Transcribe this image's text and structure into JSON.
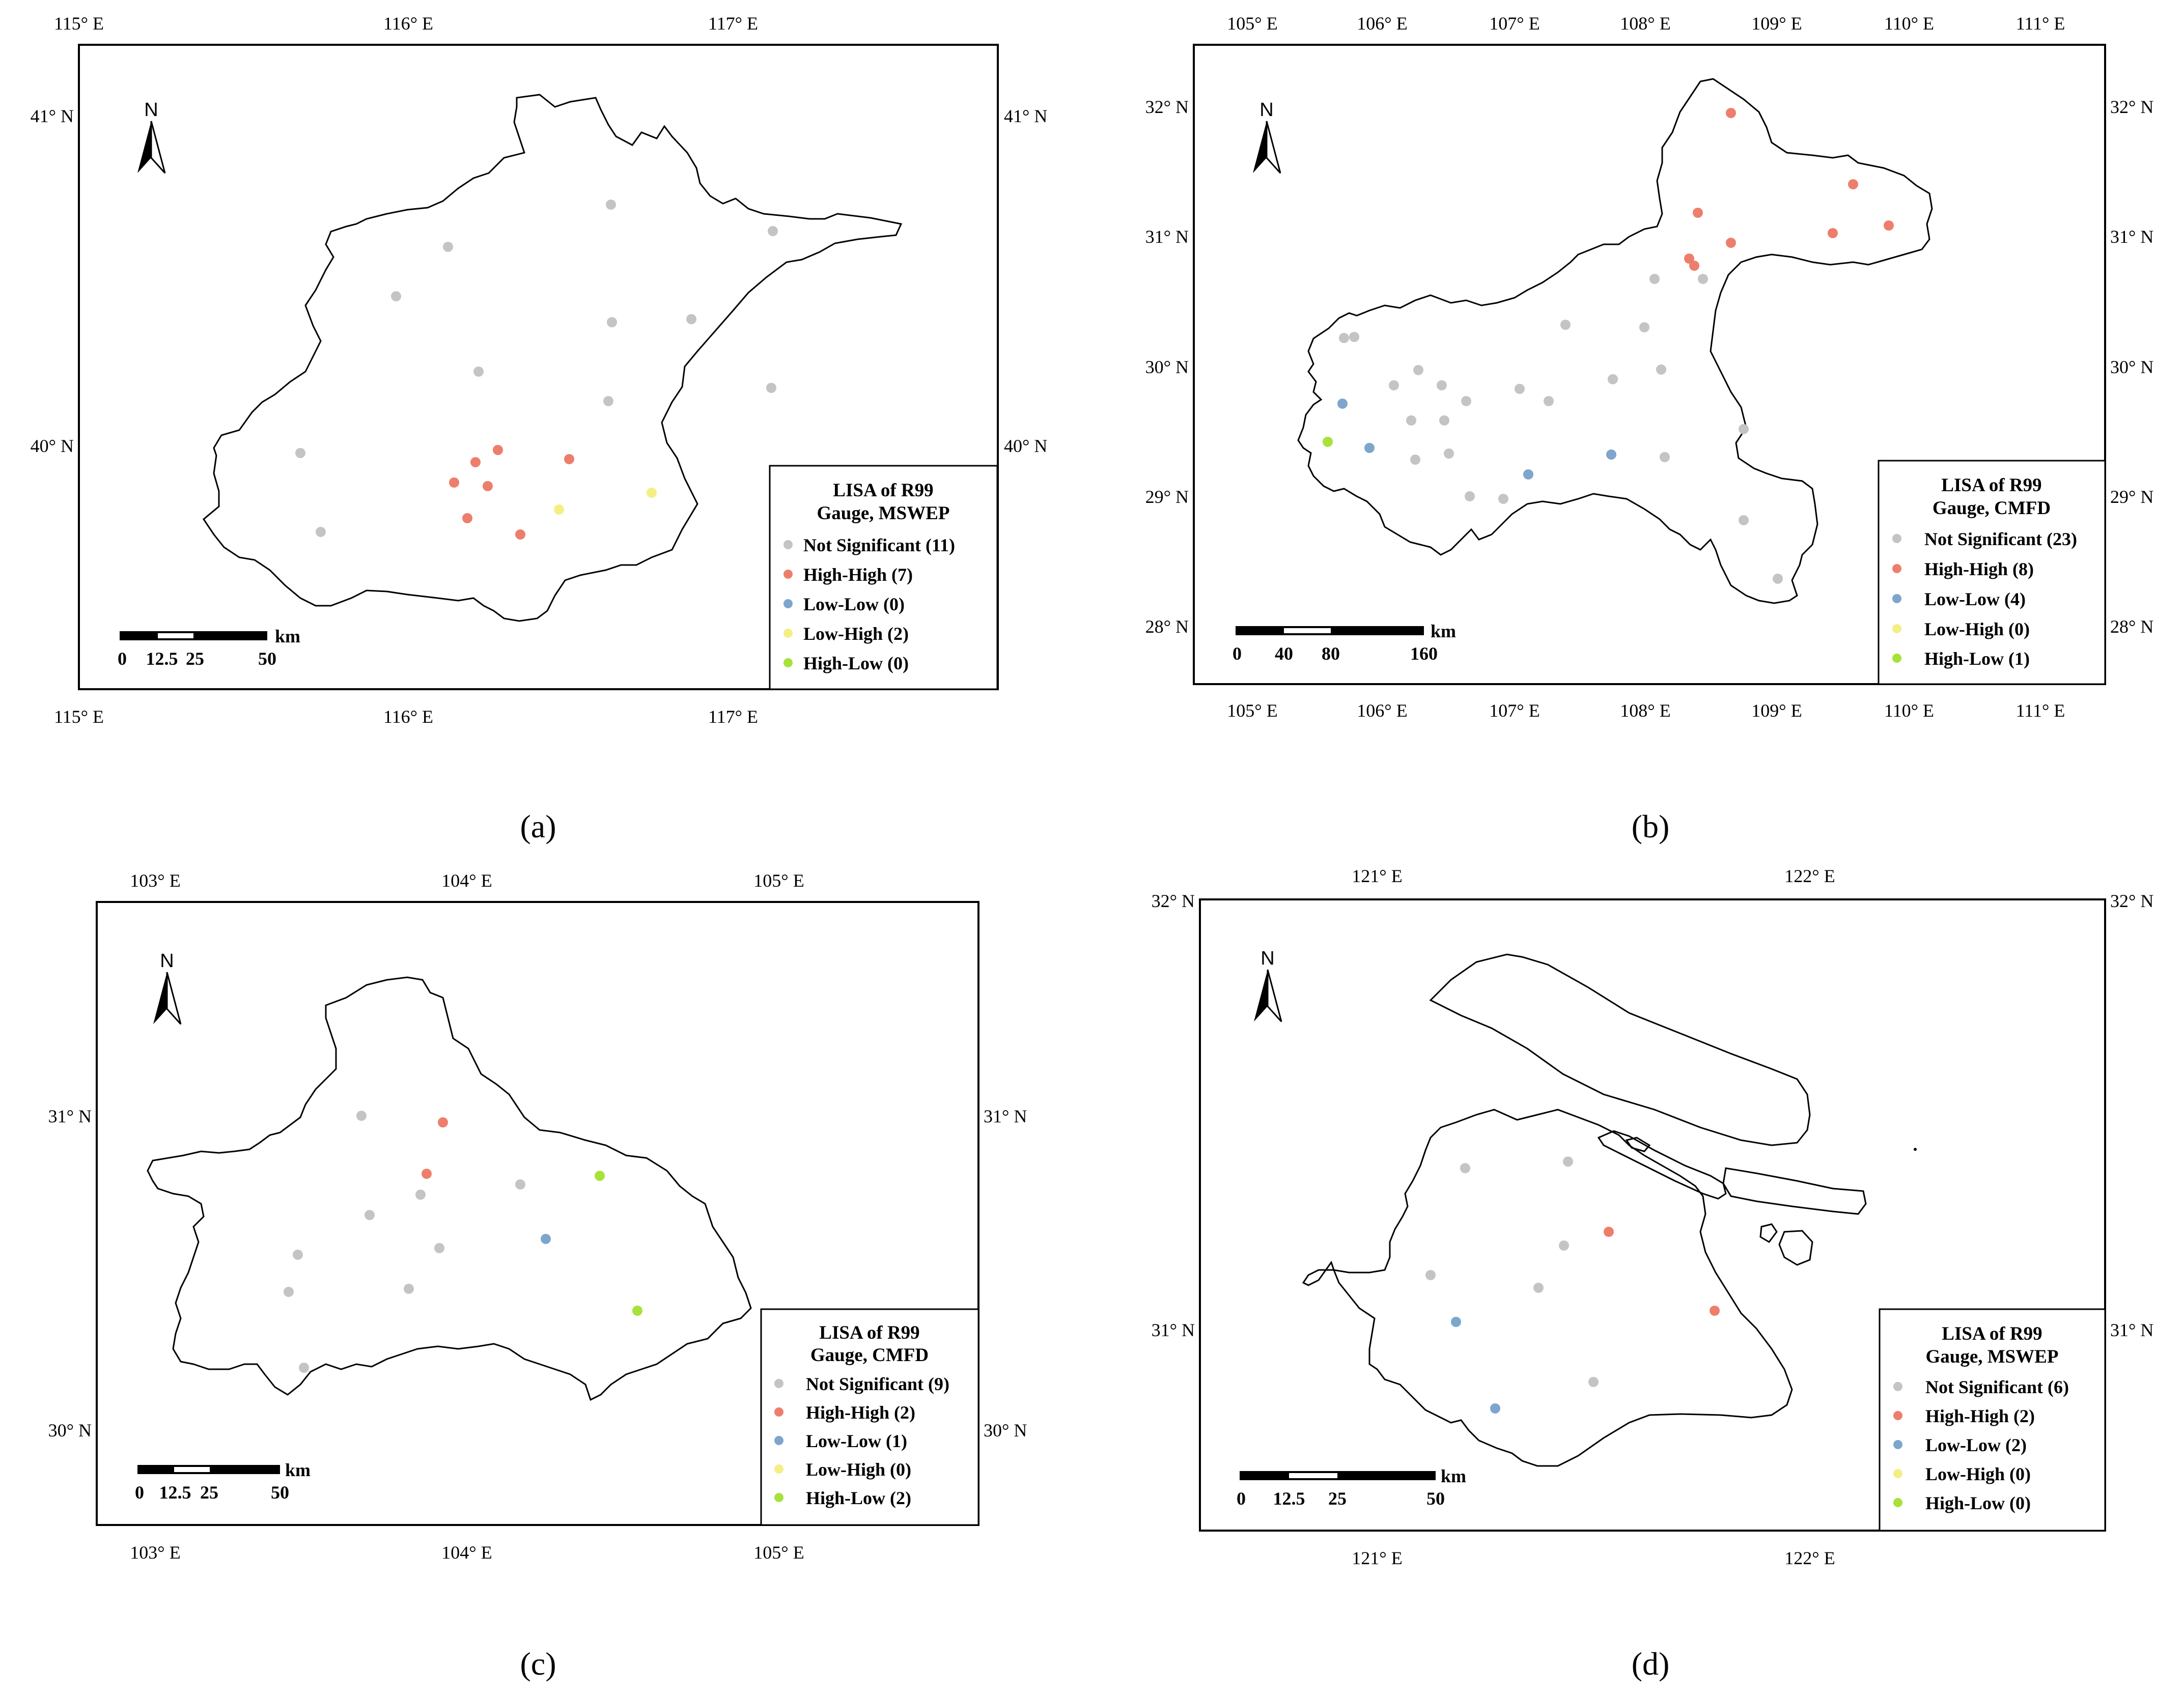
{
  "colors": {
    "Not Significant": "#c4c4c4",
    "High-High": "#ee7e6c",
    "Low-Low": "#7ea6cd",
    "Low-High": "#f3ef84",
    "High-Low": "#a7e23a"
  },
  "panels": [
    {
      "id": "a",
      "label": "(a)",
      "north_label": "N",
      "lon_ticks": [
        "115° E",
        "116° E",
        "117° E"
      ],
      "lat_ticks": [
        "41° N",
        "40° N"
      ],
      "legend": {
        "title1": "LISA of R99",
        "title2": "Gauge, MSWEP",
        "items": [
          {
            "key": "Not Significant",
            "label": "Not Significant (11)"
          },
          {
            "key": "High-High",
            "label": "High-High (7)"
          },
          {
            "key": "Low-Low",
            "label": "Low-Low (0)"
          },
          {
            "key": "Low-High",
            "label": "Low-High (2)"
          },
          {
            "key": "High-Low",
            "label": "High-Low (0)"
          }
        ]
      },
      "scale": {
        "labels": [
          "0",
          "12.5",
          "25",
          "50"
        ],
        "unit": "km"
      }
    },
    {
      "id": "b",
      "label": "(b)",
      "north_label": "N",
      "lon_ticks": [
        "105° E",
        "106° E",
        "107° E",
        "108° E",
        "109° E",
        "110° E",
        "111° E"
      ],
      "lat_ticks": [
        "32° N",
        "31° N",
        "30° N",
        "29° N",
        "28° N"
      ],
      "legend": {
        "title1": "LISA of R99",
        "title2": "Gauge, CMFD",
        "items": [
          {
            "key": "Not Significant",
            "label": "Not Significant (23)"
          },
          {
            "key": "High-High",
            "label": "High-High (8)"
          },
          {
            "key": "Low-Low",
            "label": "Low-Low (4)"
          },
          {
            "key": "Low-High",
            "label": "Low-High (0)"
          },
          {
            "key": "High-Low",
            "label": "High-Low (1)"
          }
        ]
      },
      "scale": {
        "labels": [
          "0",
          "40",
          "80",
          "160"
        ],
        "unit": "km"
      }
    },
    {
      "id": "c",
      "label": "(c)",
      "north_label": "N",
      "lon_ticks": [
        "103° E",
        "104° E",
        "105° E"
      ],
      "lat_ticks": [
        "31° N",
        "30° N"
      ],
      "legend": {
        "title1": "LISA of R99",
        "title2": "Gauge, CMFD",
        "items": [
          {
            "key": "Not Significant",
            "label": "Not Significant (9)"
          },
          {
            "key": "High-High",
            "label": "High-High (2)"
          },
          {
            "key": "Low-Low",
            "label": "Low-Low (1)"
          },
          {
            "key": "Low-High",
            "label": "Low-High (0)"
          },
          {
            "key": "High-Low",
            "label": "High-Low (2)"
          }
        ]
      },
      "scale": {
        "labels": [
          "0",
          "12.5",
          "25",
          "50"
        ],
        "unit": "km"
      }
    },
    {
      "id": "d",
      "label": "(d)",
      "north_label": "N",
      "lon_ticks": [
        "121° E",
        "122° E"
      ],
      "lat_ticks": [
        "32° N",
        "31° N"
      ],
      "legend": {
        "title1": "LISA of R99",
        "title2": "Gauge, MSWEP",
        "items": [
          {
            "key": "Not Significant",
            "label": "Not Significant (6)"
          },
          {
            "key": "High-High",
            "label": "High-High (2)"
          },
          {
            "key": "Low-Low",
            "label": "Low-Low (2)"
          },
          {
            "key": "Low-High",
            "label": "Low-High (0)"
          },
          {
            "key": "High-Low",
            "label": "High-Low (0)"
          }
        ]
      },
      "scale": {
        "labels": [
          "0",
          "12.5",
          "25",
          "50"
        ],
        "unit": "km"
      }
    }
  ]
}
